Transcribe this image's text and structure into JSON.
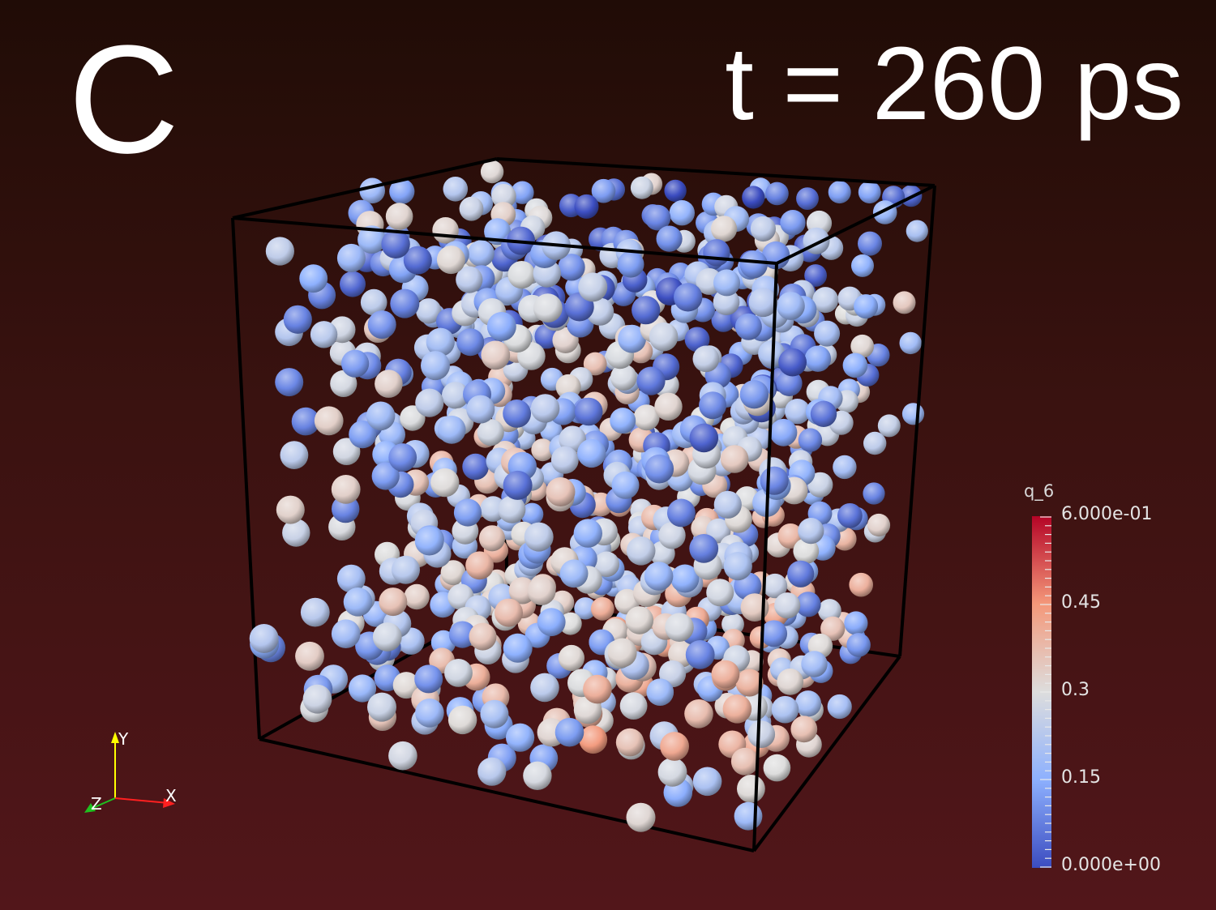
{
  "panel": {
    "label": "C",
    "time_label": "t = 260 ps"
  },
  "colorbar": {
    "title": "q_6",
    "max_label": "6.000e-01",
    "tick_045": "0.45",
    "tick_03": "0.3",
    "tick_015": "0.15",
    "min_label": "0.000e+00",
    "range": [
      0,
      0.6
    ],
    "colors": [
      "#3b4cc0",
      "#8db0fe",
      "#dddddd",
      "#f4987a",
      "#b40426"
    ]
  },
  "axes": {
    "x": "X",
    "y": "Y",
    "z": "Z"
  }
}
